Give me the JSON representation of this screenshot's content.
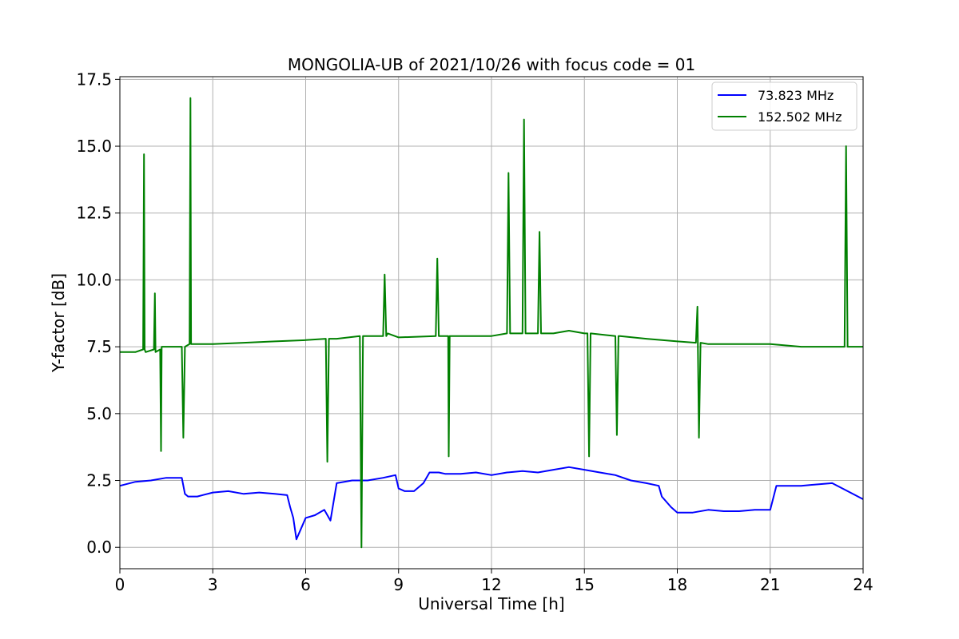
{
  "chart_data": {
    "type": "line",
    "title": "MONGOLIA-UB of 2021/10/26 with focus code = 01",
    "xlabel": "Universal Time [h]",
    "ylabel": "Y-factor [dB]",
    "xlim": [
      0,
      24
    ],
    "ylim": [
      -0.8,
      17.6
    ],
    "xticks": [
      0,
      3,
      6,
      9,
      12,
      15,
      18,
      21,
      24
    ],
    "xtick_labels": [
      "0",
      "3",
      "6",
      "9",
      "12",
      "15",
      "18",
      "21",
      "24"
    ],
    "yticks": [
      0.0,
      2.5,
      5.0,
      7.5,
      10.0,
      12.5,
      15.0,
      17.5
    ],
    "ytick_labels": [
      "0.0",
      "2.5",
      "5.0",
      "7.5",
      "10.0",
      "12.5",
      "15.0",
      "17.5"
    ],
    "grid": true,
    "legend_position": "top-right",
    "series": [
      {
        "name": "73.823 MHz",
        "color": "#0000ff",
        "x": [
          0,
          0.5,
          1.0,
          1.5,
          2.0,
          2.1,
          2.2,
          2.5,
          3.0,
          3.5,
          4.0,
          4.5,
          5.0,
          5.4,
          5.5,
          5.6,
          5.7,
          6.0,
          6.3,
          6.6,
          6.8,
          7.0,
          7.5,
          8.0,
          8.5,
          8.9,
          9.0,
          9.2,
          9.5,
          9.8,
          10.0,
          10.3,
          10.5,
          11.0,
          11.5,
          12.0,
          12.5,
          13.0,
          13.5,
          14.0,
          14.5,
          15.0,
          15.5,
          16.0,
          16.5,
          17.0,
          17.4,
          17.5,
          17.8,
          18.0,
          18.5,
          19.0,
          19.5,
          20.0,
          20.5,
          21.0,
          21.2,
          21.5,
          22.0,
          22.5,
          23.0,
          23.5,
          24.0
        ],
        "y": [
          2.3,
          2.45,
          2.5,
          2.6,
          2.6,
          2.0,
          1.9,
          1.9,
          2.05,
          2.1,
          2.0,
          2.05,
          2.0,
          1.95,
          1.5,
          1.1,
          0.3,
          1.1,
          1.2,
          1.4,
          1.0,
          2.4,
          2.5,
          2.5,
          2.6,
          2.7,
          2.2,
          2.1,
          2.1,
          2.4,
          2.8,
          2.8,
          2.75,
          2.75,
          2.8,
          2.7,
          2.8,
          2.85,
          2.8,
          2.9,
          3.0,
          2.9,
          2.8,
          2.7,
          2.5,
          2.4,
          2.3,
          1.9,
          1.5,
          1.3,
          1.3,
          1.4,
          1.35,
          1.35,
          1.4,
          1.4,
          2.3,
          2.3,
          2.3,
          2.35,
          2.4,
          2.1,
          1.8
        ]
      },
      {
        "name": "152.502 MHz",
        "color": "#008000",
        "x": [
          0,
          0.5,
          0.75,
          0.78,
          0.8,
          0.83,
          1.1,
          1.13,
          1.15,
          1.3,
          1.33,
          1.35,
          2.0,
          2.05,
          2.1,
          2.25,
          2.28,
          2.3,
          2.33,
          3.0,
          4.0,
          5.0,
          6.0,
          6.65,
          6.7,
          6.75,
          7.0,
          7.75,
          7.8,
          7.85,
          8.5,
          8.55,
          8.6,
          8.65,
          9.0,
          10.2,
          10.25,
          10.3,
          10.35,
          10.6,
          10.62,
          10.65,
          11.0,
          12.0,
          12.5,
          12.55,
          12.6,
          12.65,
          13.0,
          13.05,
          13.1,
          13.15,
          13.5,
          13.55,
          13.6,
          13.65,
          14.0,
          14.5,
          15.0,
          15.1,
          15.15,
          15.2,
          16.0,
          16.05,
          16.1,
          16.15,
          17.0,
          18.0,
          18.6,
          18.65,
          18.7,
          18.75,
          19.0,
          20.0,
          21.0,
          22.0,
          23.0,
          23.4,
          23.45,
          23.5,
          23.55,
          24.0
        ],
        "y": [
          7.3,
          7.3,
          7.4,
          14.7,
          7.4,
          7.3,
          7.4,
          9.5,
          7.3,
          7.4,
          3.6,
          7.5,
          7.5,
          4.1,
          7.5,
          7.6,
          16.8,
          7.6,
          7.6,
          7.6,
          7.65,
          7.7,
          7.75,
          7.8,
          3.2,
          7.8,
          7.8,
          7.9,
          0.0,
          7.9,
          7.9,
          10.2,
          7.9,
          8.0,
          7.85,
          7.9,
          10.8,
          7.9,
          7.9,
          7.9,
          3.4,
          7.9,
          7.9,
          7.9,
          8.0,
          14.0,
          8.0,
          8.0,
          8.0,
          16.0,
          8.0,
          8.0,
          8.0,
          11.8,
          8.0,
          8.0,
          8.0,
          8.1,
          8.0,
          8.0,
          3.4,
          8.0,
          7.9,
          4.2,
          7.9,
          7.9,
          7.8,
          7.7,
          7.65,
          9.0,
          4.1,
          7.65,
          7.6,
          7.6,
          7.6,
          7.5,
          7.5,
          7.5,
          15.0,
          7.5,
          7.5,
          7.5
        ]
      }
    ]
  }
}
